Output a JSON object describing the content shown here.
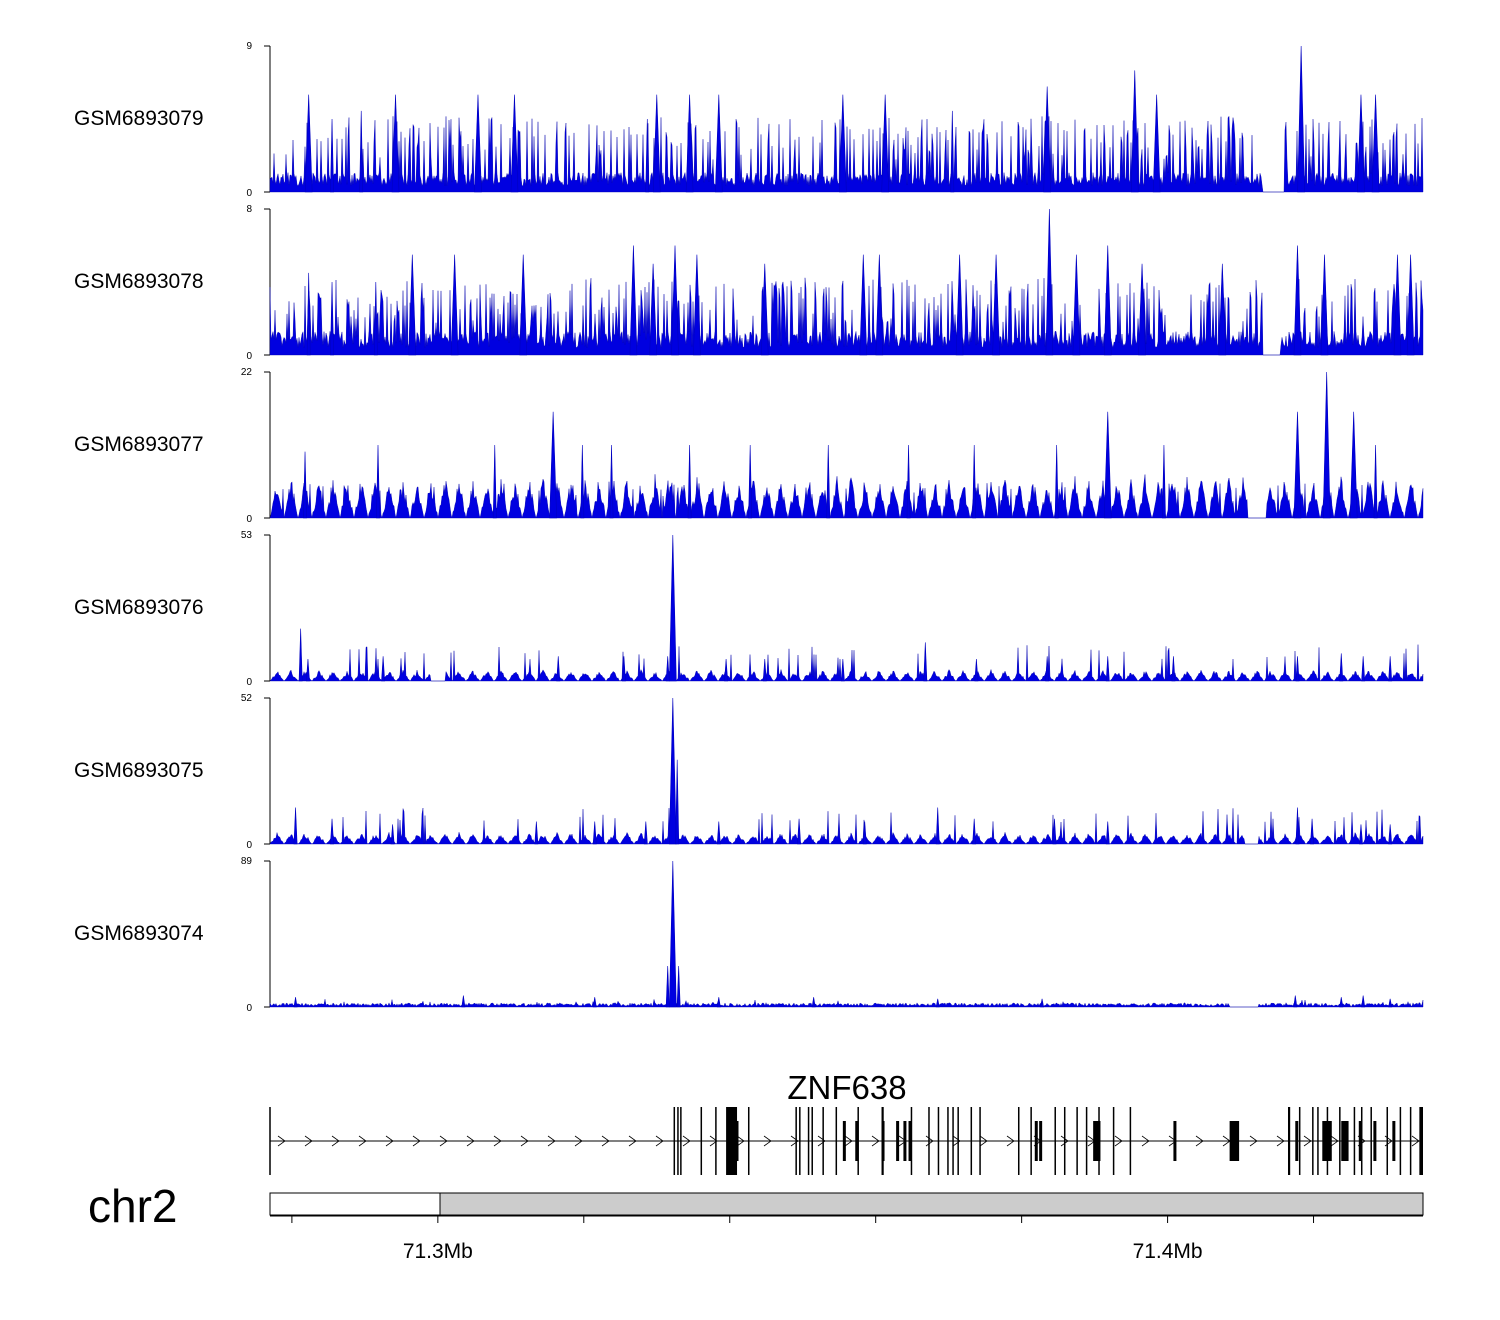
{
  "chart_data": {
    "type": "area",
    "chromosome": "chr2",
    "region_mb": [
      71.277,
      71.435
    ],
    "position_ticks_mb": [
      71.28,
      71.3,
      71.32,
      71.34,
      71.36,
      71.38,
      71.4,
      71.42
    ],
    "position_tick_labels": [
      {
        "mb": 71.3,
        "label": "71.3Mb"
      },
      {
        "mb": 71.4,
        "label": "71.4Mb"
      }
    ],
    "series": [
      {
        "name": "GSM6893079",
        "ylim": [
          0,
          9
        ],
        "ymax_label": "9",
        "ymin_label": "0",
        "pattern": "noise",
        "baseline": 1.2,
        "gap_mb": [
          71.413,
          71.416
        ],
        "peaks": [
          [
            71.2823,
            6
          ],
          [
            71.2855,
            4.5
          ],
          [
            71.2895,
            5
          ],
          [
            71.2942,
            6
          ],
          [
            71.3055,
            6
          ],
          [
            71.3105,
            6
          ],
          [
            71.3287,
            4.5
          ],
          [
            71.33,
            6
          ],
          [
            71.3345,
            6
          ],
          [
            71.3385,
            6
          ],
          [
            71.3555,
            6
          ],
          [
            71.3613,
            6
          ],
          [
            71.3705,
            5
          ],
          [
            71.3835,
            6.5
          ],
          [
            71.3955,
            7.5
          ],
          [
            71.3985,
            6
          ],
          [
            71.4183,
            9
          ],
          [
            71.4265,
            6
          ],
          [
            71.4285,
            6
          ]
        ]
      },
      {
        "name": "GSM6893078",
        "ylim": [
          0,
          8
        ],
        "ymax_label": "8",
        "ymin_label": "0",
        "pattern": "noise",
        "baseline": 1.3,
        "gap_mb": [
          71.413,
          71.4155
        ],
        "peaks": [
          [
            71.2823,
            4.5
          ],
          [
            71.2855,
            4
          ],
          [
            71.2915,
            4
          ],
          [
            71.2965,
            5.5
          ],
          [
            71.3023,
            5.5
          ],
          [
            71.3117,
            5.5
          ],
          [
            71.3268,
            6
          ],
          [
            71.3295,
            5
          ],
          [
            71.3325,
            6
          ],
          [
            71.3355,
            5.5
          ],
          [
            71.3448,
            5
          ],
          [
            71.3583,
            5.5
          ],
          [
            71.3605,
            5.5
          ],
          [
            71.3715,
            5.5
          ],
          [
            71.3765,
            5.5
          ],
          [
            71.3838,
            8
          ],
          [
            71.3875,
            5.5
          ],
          [
            71.3918,
            6
          ],
          [
            71.3965,
            5
          ],
          [
            71.4075,
            5
          ],
          [
            71.4178,
            6
          ],
          [
            71.4215,
            5.5
          ],
          [
            71.4315,
            5.5
          ],
          [
            71.4333,
            5.5
          ]
        ]
      },
      {
        "name": "GSM6893077",
        "ylim": [
          0,
          22
        ],
        "ymax_label": "22",
        "ymin_label": "0",
        "pattern": "sparse",
        "baseline": 5.5,
        "gap_mb": [
          71.411,
          71.4135
        ],
        "peaks": [
          [
            71.2818,
            10
          ],
          [
            71.2918,
            11
          ],
          [
            71.3078,
            11
          ],
          [
            71.3158,
            16
          ],
          [
            71.3198,
            11
          ],
          [
            71.3238,
            11
          ],
          [
            71.3345,
            11
          ],
          [
            71.3428,
            11
          ],
          [
            71.3535,
            11
          ],
          [
            71.3645,
            11
          ],
          [
            71.3735,
            11
          ],
          [
            71.3848,
            11
          ],
          [
            71.3918,
            16
          ],
          [
            71.3995,
            11
          ],
          [
            71.4178,
            16
          ],
          [
            71.4218,
            22
          ],
          [
            71.4255,
            16
          ],
          [
            71.4285,
            11
          ]
        ]
      },
      {
        "name": "GSM6893076",
        "ylim": [
          0,
          53
        ],
        "ymax_label": "53",
        "ymin_label": "0",
        "pattern": "sparse",
        "baseline": 3.5,
        "gap_mb": [
          71.299,
          71.301
        ],
        "peaks": [
          [
            71.3322,
            53
          ],
          [
            71.2812,
            19
          ],
          [
            71.2822,
            8
          ],
          [
            71.2925,
            9
          ],
          [
            71.3165,
            9
          ],
          [
            71.3255,
            9
          ],
          [
            71.3315,
            9
          ],
          [
            71.3395,
            8
          ],
          [
            71.3448,
            8
          ],
          [
            71.3555,
            8
          ],
          [
            71.3668,
            14
          ],
          [
            71.3738,
            8
          ],
          [
            71.3835,
            9
          ],
          [
            71.3918,
            9
          ],
          [
            71.4008,
            9
          ],
          [
            71.4178,
            9
          ],
          [
            71.4238,
            10
          ],
          [
            71.4268,
            9
          ],
          [
            71.4305,
            9
          ]
        ]
      },
      {
        "name": "GSM6893075",
        "ylim": [
          0,
          52
        ],
        "ymax_label": "52",
        "ymin_label": "0",
        "pattern": "sparse",
        "baseline": 3.5,
        "gap_mb": [
          71.4105,
          71.4125
        ],
        "peaks": [
          [
            71.3322,
            52
          ],
          [
            71.3328,
            30
          ],
          [
            71.2805,
            13
          ],
          [
            71.2855,
            9
          ],
          [
            71.2938,
            7
          ],
          [
            71.3135,
            8
          ],
          [
            71.3215,
            8
          ],
          [
            71.3285,
            8
          ],
          [
            71.3385,
            8
          ],
          [
            71.3495,
            9
          ],
          [
            71.3585,
            8
          ],
          [
            71.3685,
            13
          ],
          [
            71.3735,
            9
          ],
          [
            71.3845,
            9
          ],
          [
            71.3918,
            8
          ],
          [
            71.4178,
            13
          ],
          [
            71.4198,
            9
          ],
          [
            71.4265,
            7
          ],
          [
            71.4305,
            7
          ]
        ]
      },
      {
        "name": "GSM6893074",
        "ylim": [
          0,
          89
        ],
        "ymax_label": "89",
        "ymin_label": "0",
        "pattern": "dense",
        "baseline": 2.5,
        "gap_mb": [
          71.4085,
          71.4125
        ],
        "peaks": [
          [
            71.3322,
            89
          ],
          [
            71.3315,
            25
          ],
          [
            71.333,
            25
          ],
          [
            71.2805,
            6
          ],
          [
            71.3035,
            7
          ],
          [
            71.3215,
            6
          ],
          [
            71.3385,
            6
          ],
          [
            71.3515,
            6
          ],
          [
            71.3685,
            5
          ],
          [
            71.3828,
            5
          ],
          [
            71.4175,
            7
          ],
          [
            71.4238,
            6
          ],
          [
            71.4268,
            7
          ],
          [
            71.4305,
            5
          ]
        ]
      }
    ],
    "gene_track": {
      "gene_name": "ZNF638",
      "strand": "+",
      "tx_start_mb": 71.277,
      "tx_end_mb": 71.435,
      "utr_exons_mb": [
        [
          71.3323,
          71.3325
        ],
        [
          71.3328,
          71.333
        ],
        [
          71.3332,
          71.3334
        ],
        [
          71.336,
          71.3362
        ],
        [
          71.338,
          71.3382
        ],
        [
          71.3395,
          71.341
        ],
        [
          71.3425,
          71.3427
        ],
        [
          71.349,
          71.3492
        ],
        [
          71.3495,
          71.3497
        ],
        [
          71.3507,
          71.3509
        ],
        [
          71.3512,
          71.3514
        ],
        [
          71.3527,
          71.3529
        ],
        [
          71.3545,
          71.3547
        ],
        [
          71.3575,
          71.3577
        ],
        [
          71.3608,
          71.3611
        ],
        [
          71.3648,
          71.365
        ],
        [
          71.3672,
          71.3674
        ],
        [
          71.3685,
          71.3687
        ],
        [
          71.3698,
          71.37
        ],
        [
          71.3705,
          71.3707
        ],
        [
          71.3712,
          71.3714
        ],
        [
          71.373,
          71.3732
        ],
        [
          71.3742,
          71.3744
        ],
        [
          71.3795,
          71.3797
        ],
        [
          71.3812,
          71.3814
        ],
        [
          71.3845,
          71.3847
        ],
        [
          71.3858,
          71.386
        ],
        [
          71.3875,
          71.3877
        ],
        [
          71.3888,
          71.389
        ],
        [
          71.3905,
          71.3907
        ],
        [
          71.3925,
          71.3927
        ],
        [
          71.3948,
          71.395
        ],
        [
          71.4165,
          71.4168
        ],
        [
          71.418,
          71.4182
        ],
        [
          71.4198,
          71.4199
        ],
        [
          71.4205,
          71.4206
        ],
        [
          71.4218,
          71.4219
        ],
        [
          71.4235,
          71.4236
        ],
        [
          71.4255,
          71.4256
        ],
        [
          71.4265,
          71.4266
        ],
        [
          71.4278,
          71.428
        ],
        [
          71.43,
          71.4302
        ],
        [
          71.4318,
          71.432
        ],
        [
          71.4332,
          71.4334
        ],
        [
          71.4345,
          71.435
        ]
      ],
      "cds_exons_mb": [
        [
          71.3398,
          71.3412
        ],
        [
          71.3555,
          71.3558
        ],
        [
          71.3572,
          71.3575
        ],
        [
          71.3608,
          71.3612
        ],
        [
          71.3628,
          71.363
        ],
        [
          71.3638,
          71.364
        ],
        [
          71.3645,
          71.3647
        ],
        [
          71.3818,
          71.3822
        ],
        [
          71.3824,
          71.3826
        ],
        [
          71.3898,
          71.3908
        ],
        [
          71.4008,
          71.4012
        ],
        [
          71.4085,
          71.4098
        ],
        [
          71.4175,
          71.4178
        ],
        [
          71.4212,
          71.4225
        ],
        [
          71.4238,
          71.4248
        ],
        [
          71.4262,
          71.4265
        ],
        [
          71.4282,
          71.4285
        ],
        [
          71.4308,
          71.431
        ]
      ]
    }
  }
}
